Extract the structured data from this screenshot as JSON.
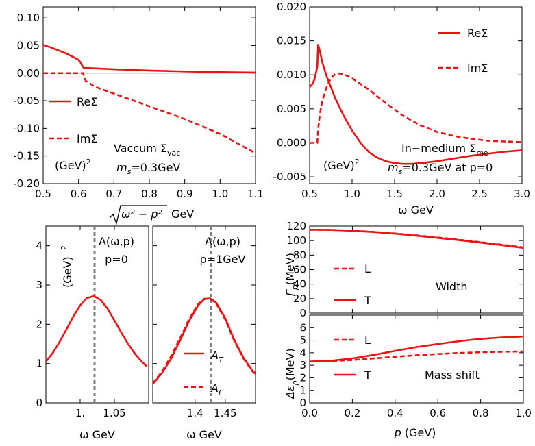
{
  "colors": {
    "curve": "#ee1111",
    "refline": "#808080",
    "zero": "#888888",
    "axis": "#000000"
  },
  "chart_data": [
    {
      "id": "p1",
      "type": "line",
      "xlabel_sqrt": "ω² − p²",
      "xlabel_unit": "GeV",
      "xlim": [
        0.5,
        1.1
      ],
      "ylim": [
        -0.2,
        0.12
      ],
      "xticks": [
        0.5,
        0.6,
        0.7,
        0.8,
        0.9,
        1.0,
        1.1
      ],
      "xtick_labels": [
        "0.5",
        "0.6",
        "0.7",
        "0.8",
        "0.9",
        "1.0",
        "1.1"
      ],
      "yticks": [
        0.1,
        0.05,
        0.0,
        -0.05,
        -0.1,
        -0.15,
        -0.2
      ],
      "ytick_labels": [
        "0.10",
        "0.05",
        "0.00",
        "-0.05",
        "-0.10",
        "-0.15",
        "-0.20"
      ],
      "series": [
        {
          "name": "ReΣ",
          "style": "solid",
          "x": [
            0.5,
            0.52,
            0.54,
            0.56,
            0.58,
            0.6,
            0.605,
            0.61,
            0.615,
            0.62,
            0.7,
            0.8,
            0.9,
            1.0,
            1.1
          ],
          "y": [
            0.051,
            0.047,
            0.042,
            0.037,
            0.031,
            0.024,
            0.02,
            0.014,
            0.009,
            0.0095,
            0.007,
            0.0048,
            0.003,
            0.0018,
            0.001
          ]
        },
        {
          "name": "ImΣ",
          "style": "dashed",
          "x": [
            0.5,
            0.613,
            0.62,
            0.64,
            0.66,
            0.7,
            0.8,
            0.9,
            1.0,
            1.1
          ],
          "y": [
            0.0,
            0.0,
            -0.014,
            -0.022,
            -0.028,
            -0.037,
            -0.06,
            -0.083,
            -0.11,
            -0.145
          ]
        }
      ],
      "legend": [
        "ReΣ",
        "ImΣ"
      ],
      "unit": "(GeV)",
      "unit_exp": "2",
      "title_main": "Vaccum Σ",
      "title_sub": "vac",
      "mass_label": "m",
      "mass_sub": "s",
      "mass_value": "=0.3GeV"
    },
    {
      "id": "p2",
      "type": "line",
      "xlabel": "ω GeV",
      "xlim": [
        0.5,
        3.0
      ],
      "ylim": [
        -0.006,
        0.02
      ],
      "xticks": [
        0.5,
        1.0,
        1.5,
        2.0,
        2.5,
        3.0
      ],
      "xtick_labels": [
        "0.5",
        "1.0",
        "1.5",
        "2.0",
        "2.5",
        "3.0"
      ],
      "yticks": [
        0.02,
        0.015,
        0.01,
        0.005,
        0.0,
        -0.005
      ],
      "ytick_labels": [
        "0.020",
        "0.015",
        "0.010",
        "0.005",
        "0.000",
        "-0.005"
      ],
      "series": [
        {
          "name": "ReΣ",
          "style": "solid",
          "x": [
            0.5,
            0.53,
            0.56,
            0.59,
            0.6,
            0.62,
            0.65,
            0.7,
            0.8,
            0.9,
            1.0,
            1.1,
            1.2,
            1.3,
            1.4,
            1.5,
            1.6,
            1.7,
            1.8,
            2.0,
            2.2,
            2.4,
            2.6,
            2.8,
            3.0
          ],
          "y": [
            0.0082,
            0.0086,
            0.0094,
            0.0112,
            0.0145,
            0.0135,
            0.0118,
            0.0098,
            0.0066,
            0.004,
            0.0018,
            0.0,
            -0.0014,
            -0.0022,
            -0.0027,
            -0.003,
            -0.0031,
            -0.0031,
            -0.003,
            -0.0027,
            -0.0023,
            -0.0019,
            -0.0016,
            -0.0013,
            -0.0011
          ]
        },
        {
          "name": "ImΣ",
          "style": "dashed",
          "x": [
            0.5,
            0.59,
            0.6,
            0.62,
            0.65,
            0.7,
            0.75,
            0.8,
            0.85,
            0.9,
            1.0,
            1.2,
            1.4,
            1.6,
            1.8,
            2.0,
            2.2,
            2.4,
            2.6,
            2.8,
            3.0
          ],
          "y": [
            0.0,
            0.0,
            0.002,
            0.0042,
            0.0062,
            0.0082,
            0.0095,
            0.0101,
            0.0102,
            0.0101,
            0.0095,
            0.0078,
            0.0058,
            0.004,
            0.0026,
            0.0016,
            0.001,
            0.0006,
            0.0003,
            0.0002,
            0.0001
          ]
        }
      ],
      "legend": [
        "ReΣ",
        "ImΣ"
      ],
      "unit": "(GeV)",
      "unit_exp": "2",
      "title_main": "In−medium Σ",
      "title_sub": "me",
      "mass_label": "m",
      "mass_sub": "s",
      "mass_value": "=0.3GeV at p=0"
    },
    {
      "id": "p3",
      "type": "line",
      "xlabel": "ω GeV",
      "xlim": [
        0.95,
        1.1
      ],
      "ylim": [
        0,
        4.5
      ],
      "xticks": [
        1.0,
        1.05
      ],
      "xtick_labels": [
        "1.",
        "1.05"
      ],
      "yticks": [
        0,
        1,
        2,
        3,
        4
      ],
      "ytick_labels": [
        "0",
        "1",
        "2",
        "3",
        "4"
      ],
      "vline": 1.021,
      "series": [
        {
          "name": "A",
          "style": "solid",
          "x": [
            0.95,
            0.96,
            0.97,
            0.98,
            0.99,
            1.0,
            1.01,
            1.02,
            1.03,
            1.04,
            1.05,
            1.06,
            1.07,
            1.08,
            1.09,
            1.097
          ],
          "y": [
            1.05,
            1.27,
            1.55,
            1.87,
            2.2,
            2.48,
            2.67,
            2.72,
            2.62,
            2.4,
            2.1,
            1.79,
            1.5,
            1.25,
            1.05,
            0.93
          ]
        }
      ],
      "unit": "(GeV)",
      "unit_exp": "−2",
      "title_line1": "A(ω,p)",
      "title_line2": "p=0"
    },
    {
      "id": "p4",
      "type": "line",
      "xlabel": "ω GeV",
      "xlim": [
        1.33,
        1.5
      ],
      "ylim": [
        0,
        4.5
      ],
      "xticks": [
        1.4,
        1.45
      ],
      "xtick_labels": [
        "1.4",
        "1.45"
      ],
      "vline": 1.426,
      "series": [
        {
          "name": "AT",
          "style": "solid",
          "x": [
            1.33,
            1.345,
            1.36,
            1.375,
            1.39,
            1.405,
            1.415,
            1.425,
            1.435,
            1.45,
            1.465,
            1.48,
            1.495,
            1.5
          ],
          "y": [
            0.48,
            0.75,
            1.12,
            1.58,
            2.08,
            2.48,
            2.64,
            2.66,
            2.55,
            2.15,
            1.6,
            1.15,
            0.82,
            0.74
          ]
        },
        {
          "name": "AL",
          "style": "dashed",
          "x": [
            1.33,
            1.345,
            1.36,
            1.375,
            1.39,
            1.405,
            1.415,
            1.425,
            1.435,
            1.45,
            1.465,
            1.48,
            1.495,
            1.5
          ],
          "y": [
            0.5,
            0.79,
            1.18,
            1.64,
            2.13,
            2.51,
            2.65,
            2.65,
            2.53,
            2.12,
            1.57,
            1.13,
            0.8,
            0.73
          ]
        }
      ],
      "legend_main": [
        "A",
        "A"
      ],
      "legend_sub": [
        "T",
        "L"
      ],
      "title_line1": "A(ω,p)",
      "title_line2": "p=1GeV"
    },
    {
      "id": "p5",
      "type": "line",
      "ylabel": "Γ",
      "ylabel_sub": "p",
      "ylabel_unit": "(MeV)",
      "xlim": [
        0,
        1
      ],
      "ylim": [
        0,
        120
      ],
      "xticks": [
        0,
        0.2,
        0.4,
        0.6,
        0.8,
        1.0
      ],
      "yticks": [
        0,
        20,
        40,
        60,
        80,
        100,
        120
      ],
      "ytick_labels": [
        "0",
        "20",
        "40",
        "60",
        "80",
        "100",
        "120"
      ],
      "series": [
        {
          "name": "T",
          "style": "solid",
          "x": [
            0,
            0.1,
            0.2,
            0.3,
            0.4,
            0.5,
            0.6,
            0.7,
            0.8,
            0.9,
            1.0
          ],
          "y": [
            115,
            114.7,
            113.5,
            111.8,
            109.5,
            106.7,
            103.7,
            100.5,
            97.2,
            93.7,
            90
          ]
        },
        {
          "name": "L",
          "style": "dashed",
          "x": [
            0,
            0.1,
            0.2,
            0.3,
            0.4,
            0.5,
            0.6,
            0.7,
            0.8,
            0.9,
            1.0
          ],
          "y": [
            115,
            114.7,
            113.6,
            112,
            109.8,
            107.2,
            104.3,
            101.2,
            97.8,
            94.3,
            90.7
          ]
        }
      ],
      "legend": [
        "L",
        "T"
      ],
      "annotation": "Width"
    },
    {
      "id": "p6",
      "type": "line",
      "xlabel": "p",
      "xlabel_unit": "(GeV)",
      "ylabel": "Δε",
      "ylabel_sub": "p",
      "ylabel_unit": "(MeV)",
      "xlim": [
        0,
        1
      ],
      "ylim": [
        0,
        7
      ],
      "xticks": [
        0,
        0.2,
        0.4,
        0.6,
        0.8,
        1.0
      ],
      "xtick_labels": [
        "0.0",
        "0.2",
        "0.4",
        "0.6",
        "0.8",
        "1.0"
      ],
      "yticks": [
        0,
        1,
        2,
        3,
        4,
        5,
        6
      ],
      "ytick_labels": [
        "0",
        "1",
        "2",
        "3",
        "4",
        "5",
        "6"
      ],
      "series": [
        {
          "name": "T",
          "style": "solid",
          "x": [
            0,
            0.1,
            0.2,
            0.3,
            0.4,
            0.5,
            0.6,
            0.7,
            0.8,
            0.9,
            1.0
          ],
          "y": [
            3.3,
            3.36,
            3.55,
            3.83,
            4.15,
            4.45,
            4.7,
            4.92,
            5.1,
            5.22,
            5.3
          ]
        },
        {
          "name": "L",
          "style": "dashed",
          "x": [
            0,
            0.1,
            0.2,
            0.3,
            0.4,
            0.5,
            0.6,
            0.7,
            0.8,
            0.9,
            1.0
          ],
          "y": [
            3.3,
            3.33,
            3.42,
            3.55,
            3.68,
            3.8,
            3.9,
            3.98,
            4.04,
            4.08,
            4.1
          ]
        }
      ],
      "legend": [
        "L",
        "T"
      ],
      "annotation": "Mass shift"
    }
  ]
}
